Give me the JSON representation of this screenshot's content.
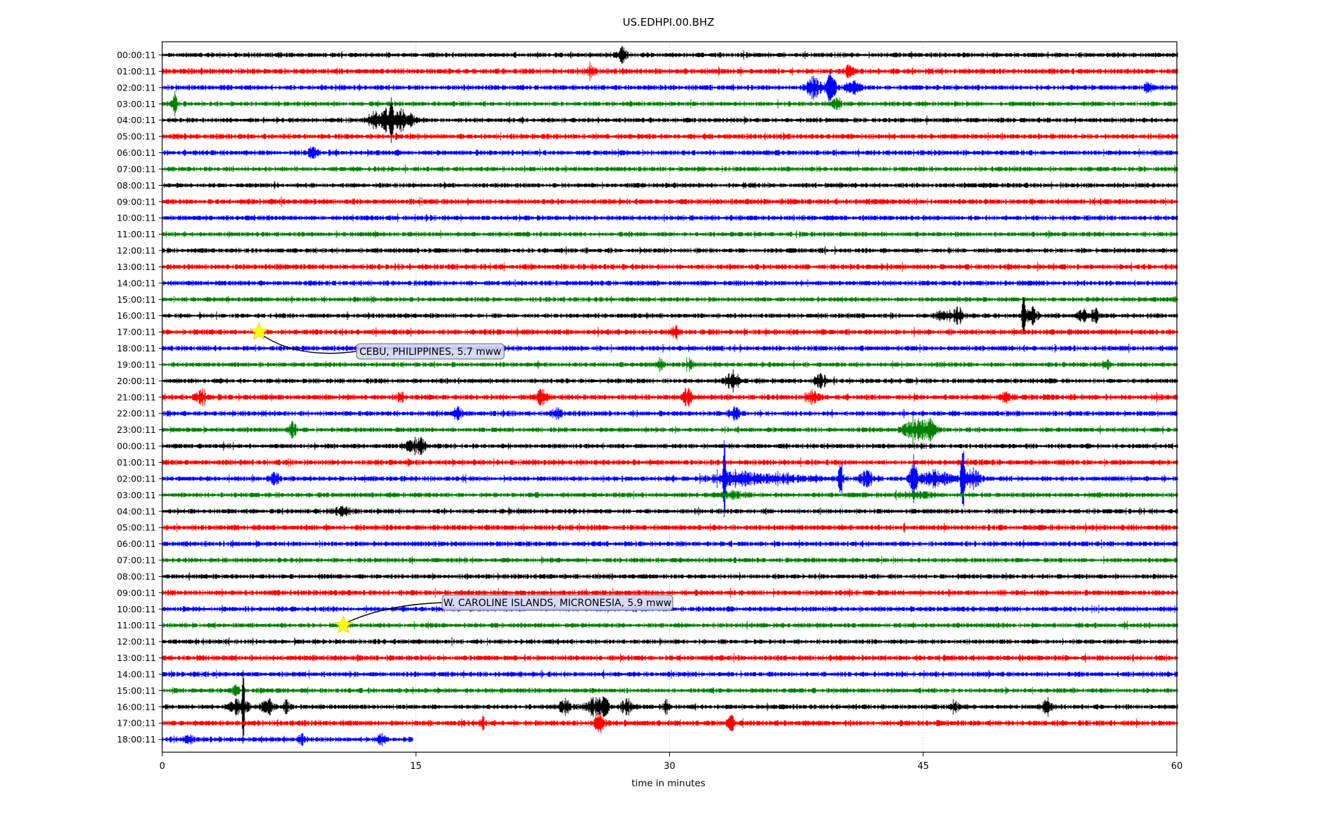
{
  "title": "US.EDHPI.00.BHZ",
  "xlabel": "time in minutes",
  "colors": {
    "background": "#ffffff",
    "frame": "#000000",
    "grid": "#b0b0b0",
    "star_fill": "#ffff00",
    "annotation_fill": "#d4d5f2",
    "annotation_border": "#7f7f7f",
    "trace_black": "#000000",
    "trace_red": "#ff0000",
    "trace_blue": "#0000ff",
    "trace_green": "#008000"
  },
  "chart_data": {
    "type": "line",
    "variant": "seismogram-dayplot",
    "station_id": "US.EDHPI.00.BHZ",
    "title": "US.EDHPI.00.BHZ",
    "x_axis": {
      "label": "time in minutes",
      "ticks": [
        0,
        15,
        30,
        45,
        60
      ],
      "range": [
        0,
        60
      ],
      "gridlines": [
        15,
        30,
        45
      ],
      "grid_style": "dotted"
    },
    "trace_color_cycle": [
      "#000000",
      "#ff0000",
      "#0000ff",
      "#008000"
    ],
    "row_note": "each row = one hour of waveform; bursts = [center_minute, width_minutes, amplitude_px]",
    "rows": [
      {
        "label": "00:00:11",
        "color": "#000000",
        "end_minute": 60,
        "bursts": [
          [
            27.2,
            0.25,
            8
          ]
        ]
      },
      {
        "label": "01:00:11",
        "color": "#ff0000",
        "end_minute": 60,
        "bursts": [
          [
            25.3,
            0.2,
            5
          ],
          [
            40.6,
            0.25,
            6
          ]
        ]
      },
      {
        "label": "02:00:11",
        "color": "#0000ff",
        "end_minute": 60,
        "bursts": [
          [
            38.5,
            0.4,
            12
          ],
          [
            39.5,
            0.3,
            15
          ],
          [
            40.8,
            0.4,
            8
          ],
          [
            58.3,
            0.25,
            6
          ]
        ]
      },
      {
        "label": "03:00:11",
        "color": "#008000",
        "end_minute": 60,
        "bursts": [
          [
            0.7,
            0.15,
            12
          ],
          [
            39.8,
            0.25,
            6
          ]
        ]
      },
      {
        "label": "04:00:11",
        "color": "#000000",
        "end_minute": 60,
        "bursts": [
          [
            12.5,
            0.35,
            9
          ],
          [
            13.1,
            0.2,
            13
          ],
          [
            13.5,
            0.12,
            22
          ],
          [
            13.9,
            0.45,
            10
          ],
          [
            14.6,
            0.3,
            6
          ]
        ]
      },
      {
        "label": "05:00:11",
        "color": "#ff0000",
        "end_minute": 60,
        "bursts": []
      },
      {
        "label": "06:00:11",
        "color": "#0000ff",
        "end_minute": 60,
        "bursts": [
          [
            8.9,
            0.25,
            7
          ]
        ]
      },
      {
        "label": "07:00:11",
        "color": "#008000",
        "end_minute": 60,
        "bursts": []
      },
      {
        "label": "08:00:11",
        "color": "#000000",
        "end_minute": 60,
        "bursts": []
      },
      {
        "label": "09:00:11",
        "color": "#ff0000",
        "end_minute": 60,
        "bursts": []
      },
      {
        "label": "10:00:11",
        "color": "#0000ff",
        "end_minute": 60,
        "bursts": []
      },
      {
        "label": "11:00:11",
        "color": "#008000",
        "end_minute": 60,
        "bursts": []
      },
      {
        "label": "12:00:11",
        "color": "#000000",
        "end_minute": 60,
        "bursts": []
      },
      {
        "label": "13:00:11",
        "color": "#ff0000",
        "end_minute": 60,
        "bursts": []
      },
      {
        "label": "14:00:11",
        "color": "#0000ff",
        "end_minute": 60,
        "bursts": []
      },
      {
        "label": "15:00:11",
        "color": "#008000",
        "end_minute": 60,
        "bursts": []
      },
      {
        "label": "16:00:11",
        "color": "#000000",
        "end_minute": 60,
        "bursts": [
          [
            46.3,
            0.6,
            6
          ],
          [
            47.1,
            0.3,
            7
          ],
          [
            50.9,
            0.1,
            27
          ],
          [
            51.4,
            0.35,
            8
          ],
          [
            54.4,
            0.25,
            9
          ],
          [
            55.1,
            0.25,
            7
          ]
        ]
      },
      {
        "label": "17:00:11",
        "color": "#ff0000",
        "end_minute": 60,
        "bursts": [
          [
            30.3,
            0.25,
            5
          ]
        ]
      },
      {
        "label": "18:00:11",
        "color": "#0000ff",
        "end_minute": 60,
        "bursts": []
      },
      {
        "label": "19:00:11",
        "color": "#008000",
        "end_minute": 60,
        "bursts": [
          [
            29.4,
            0.2,
            6
          ],
          [
            31.2,
            0.2,
            7
          ],
          [
            55.8,
            0.2,
            5
          ]
        ]
      },
      {
        "label": "20:00:11",
        "color": "#000000",
        "end_minute": 60,
        "bursts": [
          [
            33.7,
            0.4,
            9
          ],
          [
            38.9,
            0.3,
            8
          ]
        ]
      },
      {
        "label": "21:00:11",
        "color": "#ff0000",
        "end_minute": 60,
        "bursts": [
          [
            2.2,
            0.3,
            8
          ],
          [
            14.1,
            0.2,
            5
          ],
          [
            22.4,
            0.3,
            7
          ],
          [
            31.0,
            0.25,
            9
          ],
          [
            38.4,
            0.4,
            7
          ],
          [
            49.8,
            0.25,
            5
          ]
        ]
      },
      {
        "label": "22:00:11",
        "color": "#0000ff",
        "end_minute": 60,
        "bursts": [
          [
            17.4,
            0.25,
            6
          ],
          [
            23.3,
            0.3,
            6
          ],
          [
            33.8,
            0.3,
            7
          ]
        ]
      },
      {
        "label": "23:00:11",
        "color": "#008000",
        "end_minute": 60,
        "bursts": [
          [
            7.7,
            0.2,
            9
          ],
          [
            44.5,
            0.7,
            12
          ],
          [
            45.4,
            0.3,
            9
          ]
        ]
      },
      {
        "label": "00:00:11",
        "color": "#000000",
        "end_minute": 60,
        "bursts": [
          [
            14.8,
            0.4,
            8
          ],
          [
            15.3,
            0.25,
            6
          ]
        ]
      },
      {
        "label": "01:00:11",
        "color": "#ff0000",
        "end_minute": 60,
        "bursts": []
      },
      {
        "label": "02:00:11",
        "color": "#0000ff",
        "end_minute": 60,
        "bursts": [
          [
            6.6,
            0.25,
            7
          ],
          [
            33.2,
            0.08,
            34
          ],
          [
            33.8,
            1.2,
            7
          ],
          [
            36.5,
            1.5,
            4
          ],
          [
            40.1,
            0.15,
            17
          ],
          [
            41.6,
            0.4,
            8
          ],
          [
            44.4,
            0.25,
            15
          ],
          [
            45.8,
            1.0,
            8
          ],
          [
            47.3,
            0.1,
            40
          ],
          [
            47.9,
            0.4,
            11
          ]
        ]
      },
      {
        "label": "03:00:11",
        "color": "#008000",
        "end_minute": 60,
        "bursts": [
          [
            33.5,
            1.0,
            3
          ],
          [
            44.5,
            1.0,
            3
          ]
        ]
      },
      {
        "label": "04:00:11",
        "color": "#000000",
        "end_minute": 60,
        "bursts": [
          [
            10.5,
            0.5,
            4
          ]
        ]
      },
      {
        "label": "05:00:11",
        "color": "#ff0000",
        "end_minute": 60,
        "bursts": []
      },
      {
        "label": "06:00:11",
        "color": "#0000ff",
        "end_minute": 60,
        "bursts": []
      },
      {
        "label": "07:00:11",
        "color": "#008000",
        "end_minute": 60,
        "bursts": []
      },
      {
        "label": "08:00:11",
        "color": "#000000",
        "end_minute": 60,
        "bursts": []
      },
      {
        "label": "09:00:11",
        "color": "#ff0000",
        "end_minute": 60,
        "bursts": []
      },
      {
        "label": "10:00:11",
        "color": "#0000ff",
        "end_minute": 60,
        "bursts": []
      },
      {
        "label": "11:00:11",
        "color": "#008000",
        "end_minute": 60,
        "bursts": []
      },
      {
        "label": "12:00:11",
        "color": "#000000",
        "end_minute": 60,
        "bursts": []
      },
      {
        "label": "13:00:11",
        "color": "#ff0000",
        "end_minute": 60,
        "bursts": []
      },
      {
        "label": "14:00:11",
        "color": "#0000ff",
        "end_minute": 60,
        "bursts": []
      },
      {
        "label": "15:00:11",
        "color": "#008000",
        "end_minute": 60,
        "bursts": [
          [
            4.3,
            0.2,
            4
          ]
        ]
      },
      {
        "label": "16:00:11",
        "color": "#000000",
        "end_minute": 60,
        "bursts": [
          [
            4.5,
            0.5,
            9
          ],
          [
            4.75,
            0.06,
            48
          ],
          [
            6.2,
            0.35,
            8
          ],
          [
            7.3,
            0.2,
            6
          ],
          [
            23.8,
            0.4,
            7
          ],
          [
            25.4,
            0.5,
            9
          ],
          [
            26.1,
            0.25,
            12
          ],
          [
            27.4,
            0.35,
            7
          ],
          [
            29.8,
            0.15,
            8
          ],
          [
            46.8,
            0.25,
            5
          ],
          [
            52.2,
            0.3,
            6
          ]
        ]
      },
      {
        "label": "17:00:11",
        "color": "#ff0000",
        "end_minute": 60,
        "bursts": [
          [
            18.9,
            0.15,
            7
          ],
          [
            25.8,
            0.25,
            10
          ],
          [
            33.6,
            0.2,
            8
          ]
        ]
      },
      {
        "label": "18:00:11",
        "color": "#0000ff",
        "end_minute": 14.8,
        "bursts": [
          [
            1.5,
            0.25,
            6
          ],
          [
            8.2,
            0.2,
            5
          ],
          [
            12.9,
            0.25,
            5
          ]
        ]
      }
    ],
    "events": [
      {
        "label": "CEBU, PHILIPPINES, 5.7 mww",
        "region": "CEBU, PHILIPPINES",
        "magnitude": "5.7 mww",
        "row_index": 17,
        "row_label": "17:00:11",
        "minute": 5.72
      },
      {
        "label": "W. CAROLINE ISLANDS, MICRONESIA, 5.9 mww",
        "region": "W. CAROLINE ISLANDS, MICRONESIA",
        "magnitude": "5.9 mww",
        "row_index": 35,
        "row_label": "11:00:11",
        "minute": 10.71
      }
    ]
  }
}
